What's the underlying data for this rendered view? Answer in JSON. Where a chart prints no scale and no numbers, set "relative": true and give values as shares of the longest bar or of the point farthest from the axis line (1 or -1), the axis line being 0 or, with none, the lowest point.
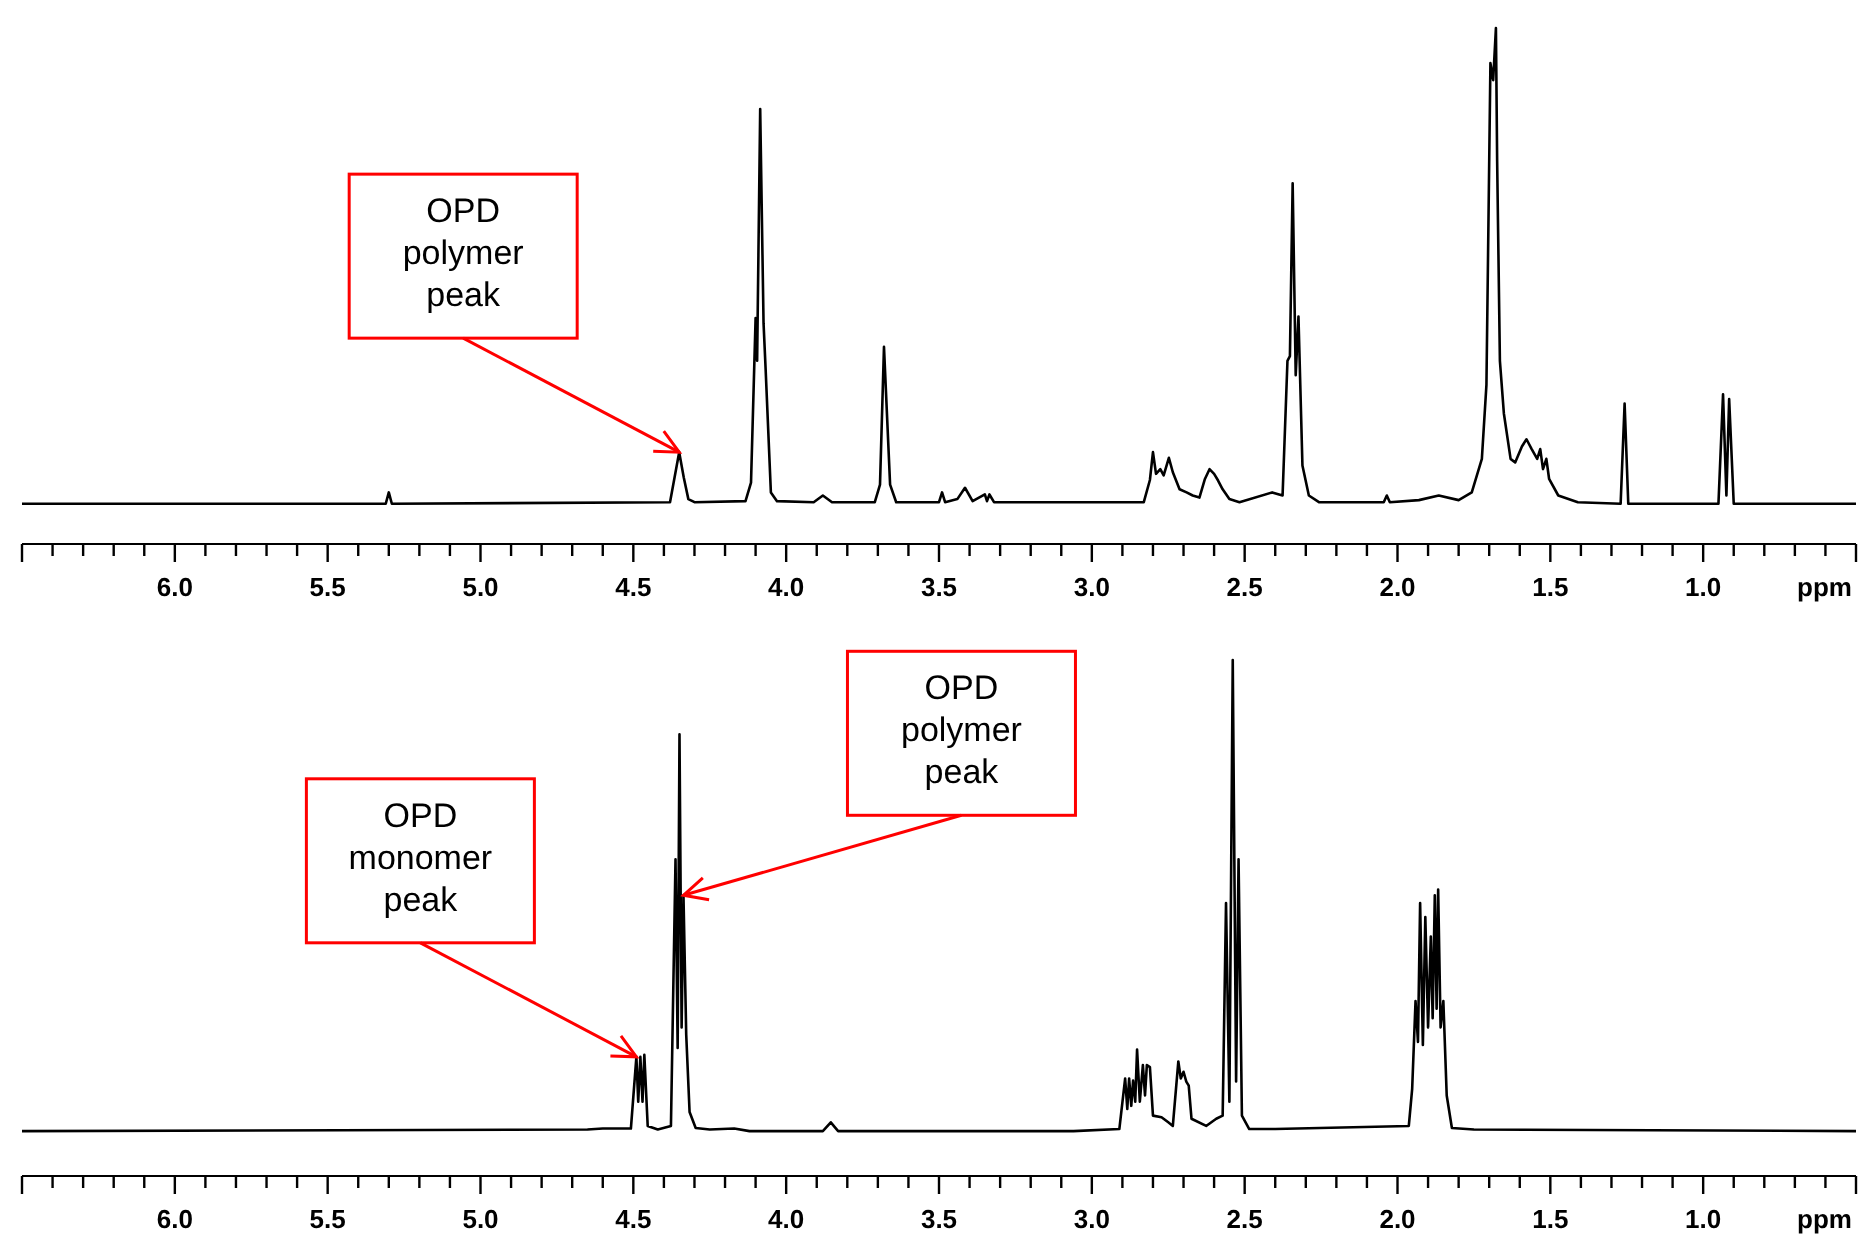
{
  "chart_data": [
    {
      "type": "line",
      "relative": true,
      "xlabel": "ppm",
      "tick_labels": "x",
      "xlim": [
        6.5,
        0.5
      ],
      "xticks": [
        {
          "value": 6.5,
          "label": null
        },
        {
          "value": 6.4,
          "label": null
        },
        {
          "value": 6.3,
          "label": null
        },
        {
          "value": 6.2,
          "label": null
        },
        {
          "value": 6.1,
          "label": null
        },
        {
          "value": 6,
          "label": "6.0"
        },
        {
          "value": 5.9,
          "label": null
        },
        {
          "value": 5.8,
          "label": null
        },
        {
          "value": 5.7,
          "label": null
        },
        {
          "value": 5.6,
          "label": null
        },
        {
          "value": 5.5,
          "label": "5.5"
        },
        {
          "value": 5.4,
          "label": null
        },
        {
          "value": 5.3,
          "label": null
        },
        {
          "value": 5.2,
          "label": null
        },
        {
          "value": 5.1,
          "label": null
        },
        {
          "value": 5,
          "label": "5.0"
        },
        {
          "value": 4.9,
          "label": null
        },
        {
          "value": 4.8,
          "label": null
        },
        {
          "value": 4.7,
          "label": null
        },
        {
          "value": 4.6,
          "label": null
        },
        {
          "value": 4.5,
          "label": "4.5"
        },
        {
          "value": 4.4,
          "label": null
        },
        {
          "value": 4.3,
          "label": null
        },
        {
          "value": 4.2,
          "label": null
        },
        {
          "value": 4.1,
          "label": null
        },
        {
          "value": 4,
          "label": "4.0"
        },
        {
          "value": 3.9,
          "label": null
        },
        {
          "value": 3.8,
          "label": null
        },
        {
          "value": 3.7,
          "label": null
        },
        {
          "value": 3.6,
          "label": null
        },
        {
          "value": 3.5,
          "label": "3.5"
        },
        {
          "value": 3.4,
          "label": null
        },
        {
          "value": 3.3,
          "label": null
        },
        {
          "value": 3.2,
          "label": null
        },
        {
          "value": 3.1,
          "label": null
        },
        {
          "value": 3,
          "label": "3.0"
        },
        {
          "value": 2.9,
          "label": null
        },
        {
          "value": 2.8,
          "label": null
        },
        {
          "value": 2.7,
          "label": null
        },
        {
          "value": 2.6,
          "label": null
        },
        {
          "value": 2.5,
          "label": "2.5"
        },
        {
          "value": 2.4,
          "label": null
        },
        {
          "value": 2.3,
          "label": null
        },
        {
          "value": 2.2,
          "label": null
        },
        {
          "value": 2.1,
          "label": null
        },
        {
          "value": 2,
          "label": "2.0"
        },
        {
          "value": 1.9,
          "label": null
        },
        {
          "value": 1.8,
          "label": null
        },
        {
          "value": 1.7,
          "label": null
        },
        {
          "value": 1.6,
          "label": null
        },
        {
          "value": 1.5,
          "label": "1.5"
        },
        {
          "value": 1.4,
          "label": null
        },
        {
          "value": 1.3,
          "label": null
        },
        {
          "value": 1.2,
          "label": null
        },
        {
          "value": 1.1,
          "label": null
        },
        {
          "value": 1,
          "label": "1.0"
        },
        {
          "value": 0.9,
          "label": null
        },
        {
          "value": 0.8,
          "label": null
        },
        {
          "value": 0.7,
          "label": null
        },
        {
          "value": 0.6,
          "label": null
        },
        {
          "value": 0.5,
          "label": null
        }
      ],
      "series": [
        {
          "color": "#000000",
          "x": [
            6.5,
            5.31,
            5.3,
            5.29,
            4.38,
            4.35,
            4.335,
            4.32,
            4.3,
            4.133,
            4.115,
            4.1,
            4.095,
            4.085,
            4.074,
            4.067,
            4.05,
            4.03,
            3.91,
            3.88,
            3.85,
            3.71,
            3.693,
            3.68,
            3.66,
            3.64,
            3.5,
            3.49,
            3.48,
            3.44,
            3.415,
            3.39,
            3.35,
            3.343,
            3.335,
            3.32,
            2.83,
            2.81,
            2.8,
            2.79,
            2.776,
            2.765,
            2.748,
            2.735,
            2.713,
            2.69,
            2.67,
            2.648,
            2.63,
            2.615,
            2.6,
            2.587,
            2.572,
            2.55,
            2.517,
            2.41,
            2.376,
            2.36,
            2.352,
            2.343,
            2.333,
            2.324,
            2.311,
            2.29,
            2.257,
            2.045,
            2.035,
            2.025,
            1.93,
            1.865,
            1.8,
            1.757,
            1.724,
            1.709,
            1.696,
            1.687,
            1.678,
            1.674,
            1.665,
            1.652,
            1.63,
            1.615,
            1.593,
            1.578,
            1.561,
            1.543,
            1.533,
            1.524,
            1.513,
            1.504,
            1.474,
            1.41,
            1.27,
            1.257,
            1.245,
            0.95,
            0.935,
            0.924,
            0.915,
            0.9,
            0.5
          ],
          "values": [
            0.078,
            0.078,
            0.1,
            0.078,
            0.081,
            0.178,
            0.129,
            0.087,
            0.081,
            0.083,
            0.119,
            0.438,
            0.355,
            0.843,
            0.428,
            0.336,
            0.1,
            0.083,
            0.081,
            0.094,
            0.081,
            0.081,
            0.115,
            0.382,
            0.115,
            0.081,
            0.081,
            0.1,
            0.081,
            0.087,
            0.109,
            0.083,
            0.096,
            0.083,
            0.096,
            0.081,
            0.081,
            0.124,
            0.178,
            0.136,
            0.145,
            0.133,
            0.167,
            0.139,
            0.106,
            0.1,
            0.094,
            0.09,
            0.126,
            0.145,
            0.136,
            0.123,
            0.106,
            0.087,
            0.081,
            0.1,
            0.094,
            0.355,
            0.364,
            0.699,
            0.327,
            0.441,
            0.152,
            0.094,
            0.081,
            0.081,
            0.094,
            0.081,
            0.085,
            0.094,
            0.085,
            0.1,
            0.165,
            0.309,
            0.932,
            0.899,
            1,
            0.742,
            0.355,
            0.253,
            0.165,
            0.158,
            0.189,
            0.203,
            0.184,
            0.165,
            0.184,
            0.145,
            0.165,
            0.126,
            0.094,
            0.081,
            0.078,
            0.272,
            0.078,
            0.078,
            0.29,
            0.094,
            0.281,
            0.078,
            0.078
          ]
        }
      ],
      "annotations": [
        {
          "text": "OPD\npolymer\npeak",
          "x": 4.35,
          "y": 0.178
        }
      ]
    },
    {
      "type": "line",
      "relative": true,
      "xlabel": "ppm",
      "tick_labels": "x",
      "xlim": [
        6.5,
        0.5
      ],
      "xticks": [
        {
          "value": 6.5,
          "label": null
        },
        {
          "value": 6.4,
          "label": null
        },
        {
          "value": 6.3,
          "label": null
        },
        {
          "value": 6.2,
          "label": null
        },
        {
          "value": 6.1,
          "label": null
        },
        {
          "value": 6,
          "label": "6.0"
        },
        {
          "value": 5.9,
          "label": null
        },
        {
          "value": 5.8,
          "label": null
        },
        {
          "value": 5.7,
          "label": null
        },
        {
          "value": 5.6,
          "label": null
        },
        {
          "value": 5.5,
          "label": "5.5"
        },
        {
          "value": 5.4,
          "label": null
        },
        {
          "value": 5.3,
          "label": null
        },
        {
          "value": 5.2,
          "label": null
        },
        {
          "value": 5.1,
          "label": null
        },
        {
          "value": 5,
          "label": "5.0"
        },
        {
          "value": 4.9,
          "label": null
        },
        {
          "value": 4.8,
          "label": null
        },
        {
          "value": 4.7,
          "label": null
        },
        {
          "value": 4.6,
          "label": null
        },
        {
          "value": 4.5,
          "label": "4.5"
        },
        {
          "value": 4.4,
          "label": null
        },
        {
          "value": 4.3,
          "label": null
        },
        {
          "value": 4.2,
          "label": null
        },
        {
          "value": 4.1,
          "label": null
        },
        {
          "value": 4,
          "label": "4.0"
        },
        {
          "value": 3.9,
          "label": null
        },
        {
          "value": 3.8,
          "label": null
        },
        {
          "value": 3.7,
          "label": null
        },
        {
          "value": 3.6,
          "label": null
        },
        {
          "value": 3.5,
          "label": "3.5"
        },
        {
          "value": 3.4,
          "label": null
        },
        {
          "value": 3.3,
          "label": null
        },
        {
          "value": 3.2,
          "label": null
        },
        {
          "value": 3.1,
          "label": null
        },
        {
          "value": 3,
          "label": "3.0"
        },
        {
          "value": 2.9,
          "label": null
        },
        {
          "value": 2.8,
          "label": null
        },
        {
          "value": 2.7,
          "label": null
        },
        {
          "value": 2.6,
          "label": null
        },
        {
          "value": 2.5,
          "label": "2.5"
        },
        {
          "value": 2.4,
          "label": null
        },
        {
          "value": 2.3,
          "label": null
        },
        {
          "value": 2.2,
          "label": null
        },
        {
          "value": 2.1,
          "label": null
        },
        {
          "value": 2,
          "label": "2.0"
        },
        {
          "value": 1.9,
          "label": null
        },
        {
          "value": 1.8,
          "label": null
        },
        {
          "value": 1.7,
          "label": null
        },
        {
          "value": 1.6,
          "label": null
        },
        {
          "value": 1.5,
          "label": "1.5"
        },
        {
          "value": 1.4,
          "label": null
        },
        {
          "value": 1.3,
          "label": null
        },
        {
          "value": 1.2,
          "label": null
        },
        {
          "value": 1.1,
          "label": null
        },
        {
          "value": 1,
          "label": "1.0"
        },
        {
          "value": 0.9,
          "label": null
        },
        {
          "value": 0.8,
          "label": null
        },
        {
          "value": 0.7,
          "label": null
        },
        {
          "value": 0.6,
          "label": null
        },
        {
          "value": 0.5,
          "label": null
        }
      ],
      "series": [
        {
          "color": "#000000",
          "x": [
            6.5,
            4.65,
            4.6,
            4.508,
            4.49,
            4.484,
            4.477,
            4.47,
            4.464,
            4.453,
            4.42,
            4.377,
            4.362,
            4.355,
            4.349,
            4.342,
            4.336,
            4.327,
            4.316,
            4.296,
            4.25,
            4.17,
            4.12,
            3.88,
            3.854,
            3.83,
            3.06,
            2.91,
            2.891,
            2.884,
            2.878,
            2.871,
            2.865,
            2.858,
            2.852,
            2.843,
            2.833,
            2.826,
            2.82,
            2.81,
            2.8,
            2.772,
            2.75,
            2.735,
            2.717,
            2.709,
            2.7,
            2.691,
            2.683,
            2.674,
            2.626,
            2.593,
            2.572,
            2.561,
            2.55,
            2.539,
            2.528,
            2.52,
            2.509,
            2.485,
            2.4,
            1.963,
            1.952,
            1.941,
            1.933,
            1.926,
            1.917,
            1.909,
            1.9,
            1.891,
            1.885,
            1.878,
            1.872,
            1.867,
            1.859,
            1.85,
            1.839,
            1.822,
            1.75,
            0.5
          ],
          "values": [
            0.087,
            0.09,
            0.092,
            0.092,
            0.231,
            0.144,
            0.231,
            0.144,
            0.235,
            0.097,
            0.09,
            0.097,
            0.614,
            0.248,
            0.856,
            0.288,
            0.544,
            0.274,
            0.124,
            0.093,
            0.09,
            0.092,
            0.087,
            0.087,
            0.104,
            0.087,
            0.087,
            0.091,
            0.189,
            0.13,
            0.189,
            0.136,
            0.185,
            0.144,
            0.245,
            0.144,
            0.215,
            0.156,
            0.215,
            0.211,
            0.117,
            0.114,
            0.104,
            0.097,
            0.222,
            0.189,
            0.202,
            0.183,
            0.175,
            0.111,
            0.097,
            0.111,
            0.117,
            0.529,
            0.144,
            1,
            0.183,
            0.614,
            0.117,
            0.091,
            0.091,
            0.097,
            0.169,
            0.339,
            0.26,
            0.529,
            0.254,
            0.502,
            0.288,
            0.464,
            0.306,
            0.544,
            0.324,
            0.555,
            0.288,
            0.339,
            0.156,
            0.093,
            0.09,
            0.087
          ]
        }
      ],
      "annotations": [
        {
          "text": "OPD\nmonomer\npeak",
          "x": 4.49,
          "y": 0.231
        },
        {
          "text": "OPD\npolymer\npeak",
          "x": 4.336,
          "y": 0.544
        }
      ]
    }
  ]
}
